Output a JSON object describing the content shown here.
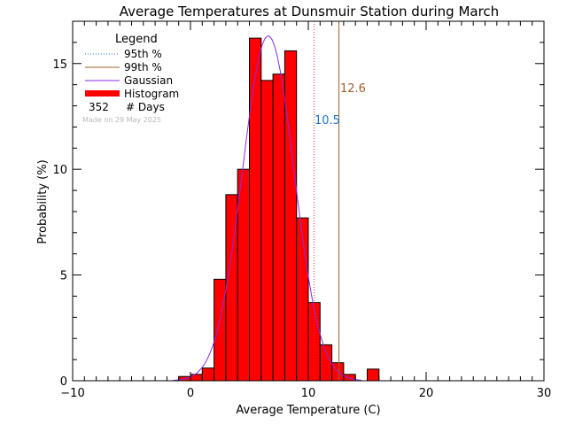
{
  "chart_data": {
    "type": "bar",
    "title": "Average Temperatures at Dunsmuir Station during March",
    "xlabel": "Average Temperature (C)",
    "ylabel": "Probability  (%)",
    "xlim": [
      -10,
      30
    ],
    "ylim": [
      0,
      17
    ],
    "x_ticks": [
      "−10",
      "0",
      "10",
      "20",
      "30"
    ],
    "x_tick_values": [
      -10,
      0,
      10,
      20,
      30
    ],
    "y_ticks": [
      "0",
      "5",
      "10",
      "15"
    ],
    "y_tick_values": [
      0,
      5,
      10,
      15
    ],
    "x_minor_step": 1,
    "y_minor_step": 1,
    "bin_width": 1,
    "bins": [
      {
        "x": -1,
        "value": 0.2
      },
      {
        "x": 0,
        "value": 0.3
      },
      {
        "x": 1,
        "value": 0.6
      },
      {
        "x": 2,
        "value": 4.8
      },
      {
        "x": 3,
        "value": 8.8
      },
      {
        "x": 4,
        "value": 10.0
      },
      {
        "x": 5,
        "value": 16.2
      },
      {
        "x": 6,
        "value": 14.2
      },
      {
        "x": 7,
        "value": 14.5
      },
      {
        "x": 8,
        "value": 15.6
      },
      {
        "x": 9,
        "value": 7.7
      },
      {
        "x": 10,
        "value": 3.7
      },
      {
        "x": 11,
        "value": 1.7
      },
      {
        "x": 12,
        "value": 0.85
      },
      {
        "x": 13,
        "value": 0.3
      },
      {
        "x": 15,
        "value": 0.55
      }
    ],
    "gaussian": {
      "mean": 6.6,
      "sigma": 2.2,
      "peak": 16.3
    },
    "percentile_95": {
      "value": 10.5,
      "label": "10.5",
      "color": "#ff2a2a",
      "label_color": "#1f77c8"
    },
    "percentile_99": {
      "value": 12.6,
      "label": "12.6",
      "color": "#a0602a",
      "label_color": "#a0602a"
    },
    "colors": {
      "histogram": "#ff0000",
      "gaussian": "#8a2be2",
      "axis": "#000000"
    },
    "legend": {
      "title": "Legend",
      "placement": "top-left",
      "entries": [
        {
          "label": "95th %",
          "style": "dotted",
          "color": "#1f77c8"
        },
        {
          "label": "99th %",
          "style": "solid",
          "color": "#a0602a"
        },
        {
          "label": "Gaussian",
          "style": "solid",
          "color": "#8a2be2"
        },
        {
          "label": "Histogram",
          "style": "thick",
          "color": "#ff0000"
        }
      ],
      "days_count": "352",
      "days_label": "# Days",
      "made_on": "Made on 29 May 2025"
    }
  }
}
